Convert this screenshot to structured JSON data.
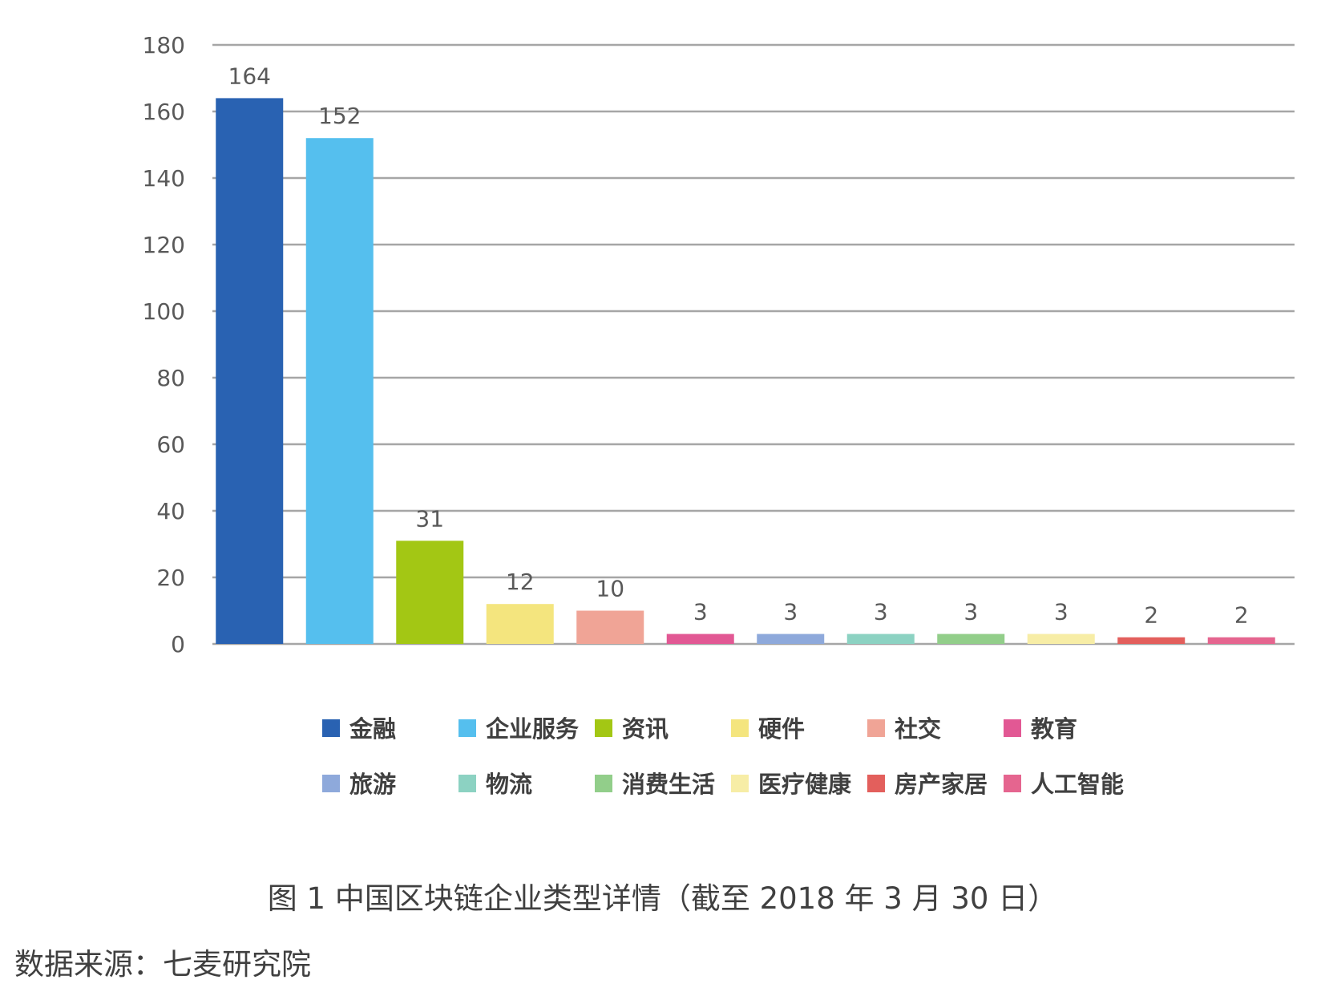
{
  "chart_data": {
    "type": "bar",
    "categories": [
      "金融",
      "企业服务",
      "资讯",
      "硬件",
      "社交",
      "教育",
      "旅游",
      "物流",
      "消费生活",
      "医疗健康",
      "房产家居",
      "人工智能"
    ],
    "values": [
      164,
      152,
      31,
      12,
      10,
      3,
      3,
      3,
      3,
      3,
      2,
      2
    ],
    "colors": [
      "#2962B2",
      "#55BFEE",
      "#A3C714",
      "#F4E57E",
      "#F0A496",
      "#E25894",
      "#8EA9DB",
      "#8CD2C2",
      "#92CE8A",
      "#F7EDA6",
      "#E35F5C",
      "#E5658F"
    ],
    "ylim": [
      0,
      180
    ],
    "yticks": [
      0,
      20,
      40,
      60,
      80,
      100,
      120,
      140,
      160,
      180
    ],
    "grid": true,
    "legend_position": "bottom",
    "caption": "图 1 中国区块链企业类型详情（截至 2018 年 3 月 30 日）",
    "source": "数据来源：七麦研究院"
  }
}
